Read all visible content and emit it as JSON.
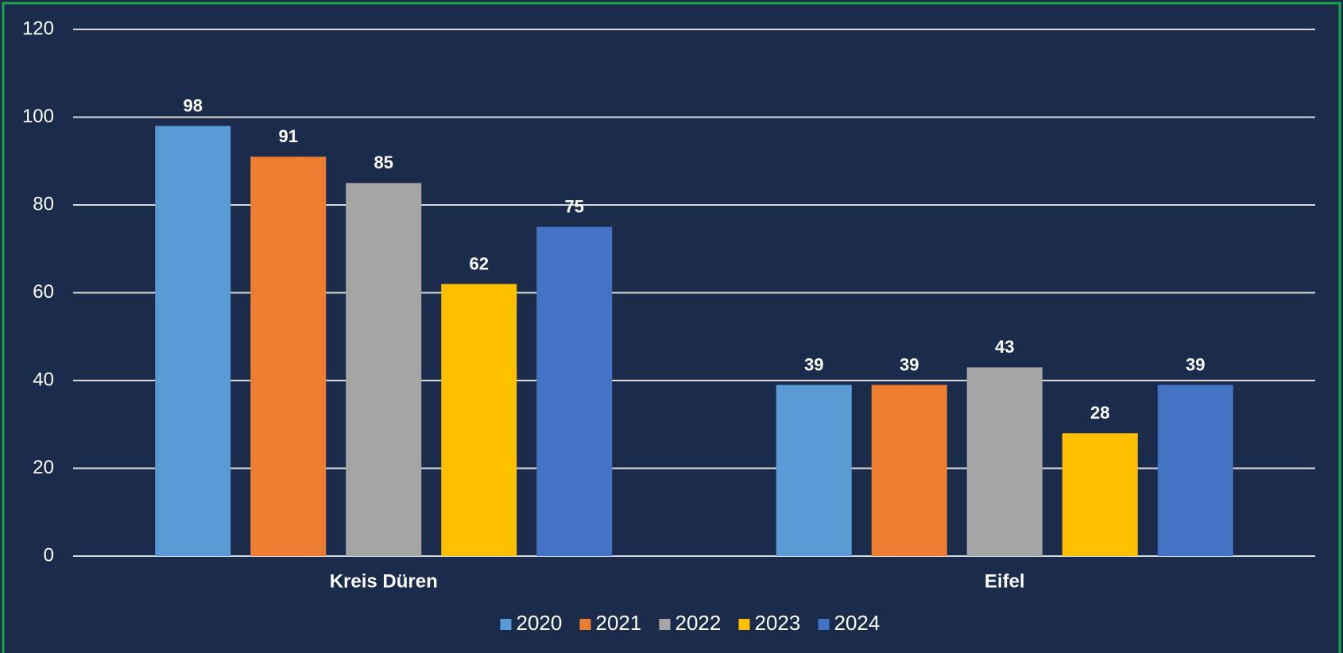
{
  "chart_data": {
    "type": "bar",
    "categories": [
      "Kreis Düren",
      "Eifel"
    ],
    "series": [
      {
        "name": "2020",
        "color": "#5b9bd5",
        "values": [
          98,
          39
        ]
      },
      {
        "name": "2021",
        "color": "#ed7d31",
        "values": [
          91,
          39
        ]
      },
      {
        "name": "2022",
        "color": "#a5a5a5",
        "values": [
          85,
          43
        ]
      },
      {
        "name": "2023",
        "color": "#ffc000",
        "values": [
          62,
          28
        ]
      },
      {
        "name": "2024",
        "color": "#4472c4",
        "values": [
          75,
          39
        ]
      }
    ],
    "ylim": [
      0,
      120
    ],
    "yticks": [
      0,
      20,
      40,
      60,
      80,
      100,
      120
    ],
    "grid": true,
    "legend": "bottom"
  }
}
